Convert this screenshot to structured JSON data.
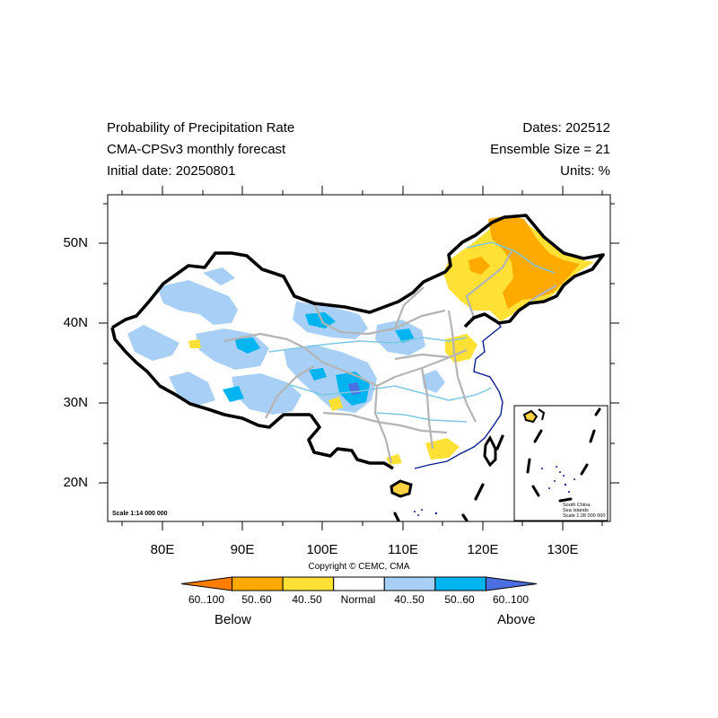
{
  "header": {
    "title_lines": [
      "Probability of Precipitation Rate",
      "CMA-CPSv3 monthly forecast",
      "Initial date: 20250801"
    ],
    "info_lines": [
      "Dates: 202512",
      "Ensemble Size = 21",
      "Units: %"
    ]
  },
  "map": {
    "lat_labels": [
      "50N",
      "40N",
      "30N",
      "20N"
    ],
    "lon_labels": [
      "80E",
      "90E",
      "100E",
      "110E",
      "120E",
      "130E"
    ],
    "scale_main": "Scale 1:14 000 000",
    "inset_labels": [
      "South China",
      "Sea Islands",
      "Scale 1:28 000 000"
    ]
  },
  "footer": {
    "copyright": "Copyright © CEMC, CMA",
    "legend": {
      "labels": [
        "60..100",
        "50..60",
        "40..50",
        "Normal",
        "40..50",
        "50..60",
        "60..100"
      ],
      "colors": [
        "#ff7d00",
        "#ffaa00",
        "#ffe135",
        "#ffffff",
        "#a8d0f7",
        "#00b4f0",
        "#4b6fe0"
      ],
      "below_label": "Below",
      "above_label": "Above"
    }
  }
}
